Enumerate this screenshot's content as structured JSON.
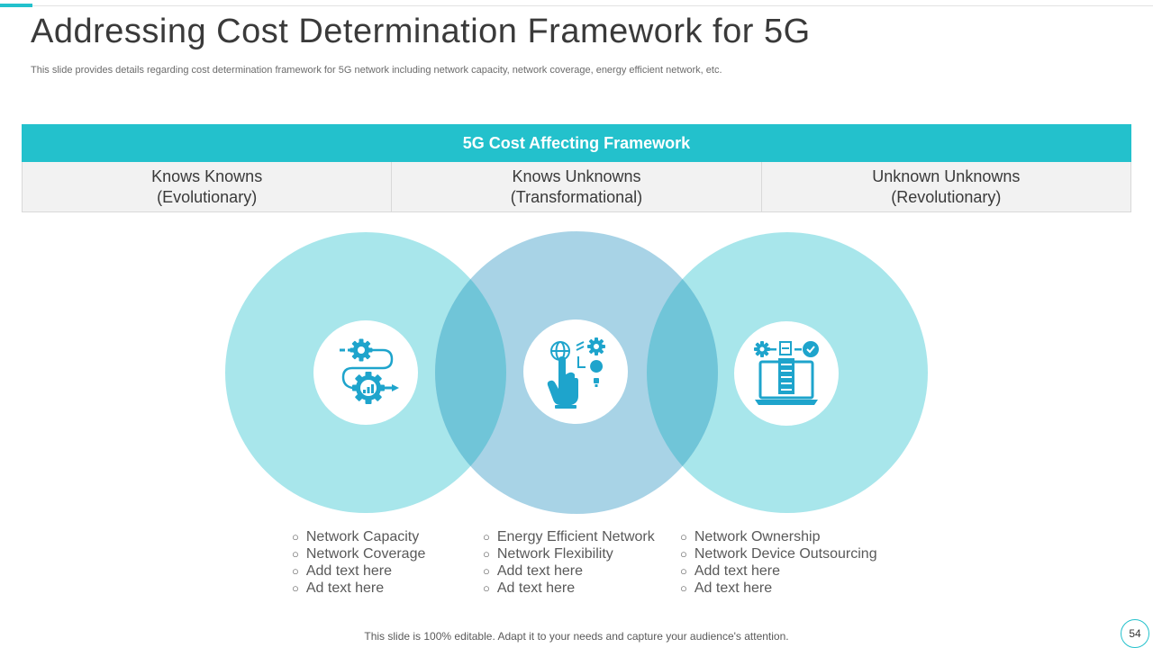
{
  "slide": {
    "title": "Addressing Cost Determination Framework for 5G",
    "subtitle": "This slide provides details regarding cost determination framework for 5G network including network capacity, network coverage, energy efficient network, etc.",
    "footer": "This slide is 100% editable. Adapt it to your needs and capture your audience's attention.",
    "page_number": "54"
  },
  "framework": {
    "header": "5G Cost Affecting Framework",
    "columns": [
      {
        "line1": "Knows Knowns",
        "line2": "(Evolutionary)",
        "icon": "gear-process-icon",
        "items": [
          "Network Capacity",
          "Network Coverage",
          "Add text here",
          "Ad text here"
        ]
      },
      {
        "line1": "Knows Unknowns",
        "line2": "(Transformational)",
        "icon": "touch-technology-icon",
        "items": [
          "Energy Efficient Network",
          "Network Flexibility",
          "Add text here",
          "Ad text here"
        ]
      },
      {
        "line1": "Unknown Unknowns",
        "line2": "(Revolutionary)",
        "icon": "laptop-workflow-icon",
        "items": [
          "Network Ownership",
          "Network Device Outsourcing",
          "Add text here",
          "Ad text here"
        ]
      }
    ]
  },
  "colors": {
    "accent": "#23c1cc",
    "circle_outer": "#a8e6eb",
    "circle_middle": "#a8d3e6",
    "overlap": "#70c5d8",
    "icon": "#1ea4cc"
  }
}
